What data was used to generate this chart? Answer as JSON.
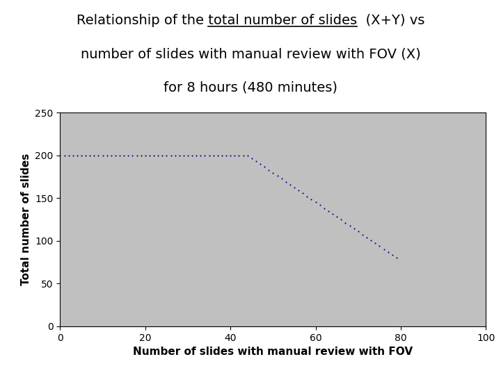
{
  "title_line1": "Relationship of the total number of slides  (X+Y) vs",
  "title_line2": "number of slides with manual review with FOV (X)",
  "title_line3": "for 8 hours (480 minutes)",
  "title_prefix": "Relationship of the ",
  "title_underlined": "total number of slides",
  "xlabel": "Number of slides with manual review with FOV",
  "ylabel": "Total number of slides",
  "xlim": [
    0,
    100
  ],
  "ylim": [
    0,
    250
  ],
  "xticks": [
    0,
    20,
    40,
    60,
    80,
    100
  ],
  "yticks": [
    0,
    50,
    100,
    150,
    200,
    250
  ],
  "flat_x_end": 44,
  "flat_y": 200,
  "end_x": 79,
  "end_y": 80,
  "line_color": "#00008B",
  "plot_bg_color": "#C0C0C0",
  "fig_bg_color": "#FFFFFF",
  "marker": ".",
  "markersize": 3,
  "linewidth": 0,
  "title_fontsize": 14,
  "axis_label_fontsize": 11,
  "title_color": "#000000"
}
